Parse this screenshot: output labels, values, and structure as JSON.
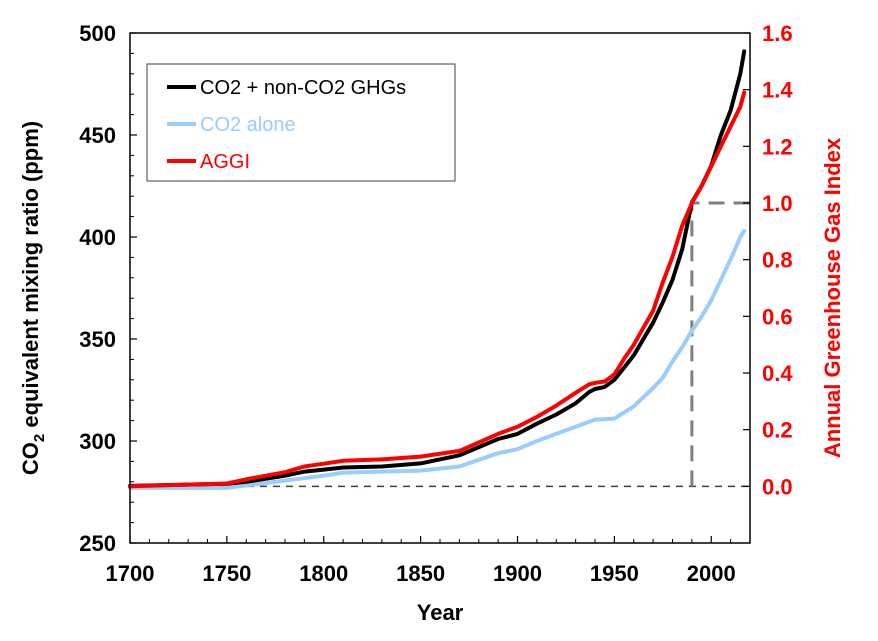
{
  "chart_data": {
    "type": "line",
    "xlabel": "Year",
    "ylabel_left": {
      "main": "CO",
      "sub": "2",
      "rest": " equivalent mixing ratio (ppm)"
    },
    "ylabel_right": "Annual Greenhouse Gas Index",
    "xlim": [
      1700,
      2020
    ],
    "ylim_left": [
      250,
      500
    ],
    "ylim_right": [
      -0.2,
      1.6
    ],
    "xticks": [
      "1700",
      "1750",
      "1800",
      "1850",
      "1900",
      "1950",
      "2000"
    ],
    "yticks_left": [
      "250",
      "300",
      "350",
      "400",
      "450",
      "500"
    ],
    "yticks_right": [
      "0.0",
      "0.2",
      "0.4",
      "0.6",
      "0.8",
      "1.0",
      "1.2",
      "1.4",
      "1.6"
    ],
    "legend_position": "top-left",
    "colors": {
      "black": "#000000",
      "blue": "#99ccff",
      "red": "#ff0000",
      "ref": "#808080",
      "baseline": "#404040"
    },
    "series": [
      {
        "name": "CO2 + non-CO2 GHGs",
        "color": "#000000",
        "axis": "left",
        "x": [
          1700,
          1750,
          1760,
          1780,
          1790,
          1800,
          1810,
          1830,
          1850,
          1870,
          1880,
          1890,
          1900,
          1910,
          1920,
          1930,
          1937,
          1940,
          1945,
          1950,
          1955,
          1960,
          1965,
          1970,
          1975,
          1980,
          1985,
          1990,
          1995,
          2000,
          2005,
          2010,
          2015,
          2017
        ],
        "values": [
          278,
          279,
          280,
          283,
          285,
          286,
          287,
          287.5,
          289,
          293,
          297,
          301,
          303.5,
          308.5,
          313,
          318.5,
          324,
          325.5,
          326.5,
          330,
          336,
          342,
          350,
          358,
          368,
          379,
          394,
          417,
          425,
          435,
          450,
          462,
          480,
          491
        ]
      },
      {
        "name": "CO2 alone",
        "color": "#99ccff",
        "axis": "left",
        "x": [
          1700,
          1750,
          1800,
          1810,
          1850,
          1870,
          1890,
          1900,
          1910,
          1920,
          1930,
          1940,
          1950,
          1960,
          1970,
          1975,
          1980,
          1985,
          1990,
          1995,
          2000,
          2005,
          2010,
          2015,
          2017
        ],
        "values": [
          277,
          277,
          283,
          284.5,
          285.5,
          287.5,
          294,
          296,
          300,
          303.5,
          307,
          310.5,
          311,
          317,
          326,
          331,
          339,
          346,
          354,
          361,
          369,
          379,
          389,
          400,
          403
        ]
      },
      {
        "name": "AGGI",
        "color": "#ff0000",
        "axis": "right",
        "x": [
          1700,
          1750,
          1760,
          1780,
          1790,
          1800,
          1810,
          1830,
          1850,
          1870,
          1880,
          1890,
          1900,
          1910,
          1920,
          1930,
          1937,
          1940,
          1945,
          1950,
          1955,
          1960,
          1965,
          1970,
          1975,
          1980,
          1985,
          1990,
          1995,
          2000,
          2005,
          2010,
          2015,
          2017
        ],
        "values": [
          0.0,
          0.01,
          0.025,
          0.05,
          0.07,
          0.08,
          0.09,
          0.095,
          0.105,
          0.125,
          0.155,
          0.185,
          0.21,
          0.245,
          0.285,
          0.33,
          0.36,
          0.365,
          0.37,
          0.395,
          0.45,
          0.5,
          0.56,
          0.62,
          0.72,
          0.81,
          0.92,
          1.0,
          1.06,
          1.13,
          1.2,
          1.27,
          1.34,
          1.39
        ]
      }
    ],
    "annotations": [
      {
        "type": "baseline",
        "axis": "right",
        "y": 0.0
      },
      {
        "type": "reference",
        "x": 1990,
        "axis": "right",
        "y": 1.0
      }
    ],
    "legend": [
      {
        "label": "CO2 + non-CO2 GHGs",
        "color": "#000000"
      },
      {
        "label": "CO2 alone",
        "color": "#99ccff"
      },
      {
        "label": "AGGI",
        "color": "#ff0000"
      }
    ]
  }
}
